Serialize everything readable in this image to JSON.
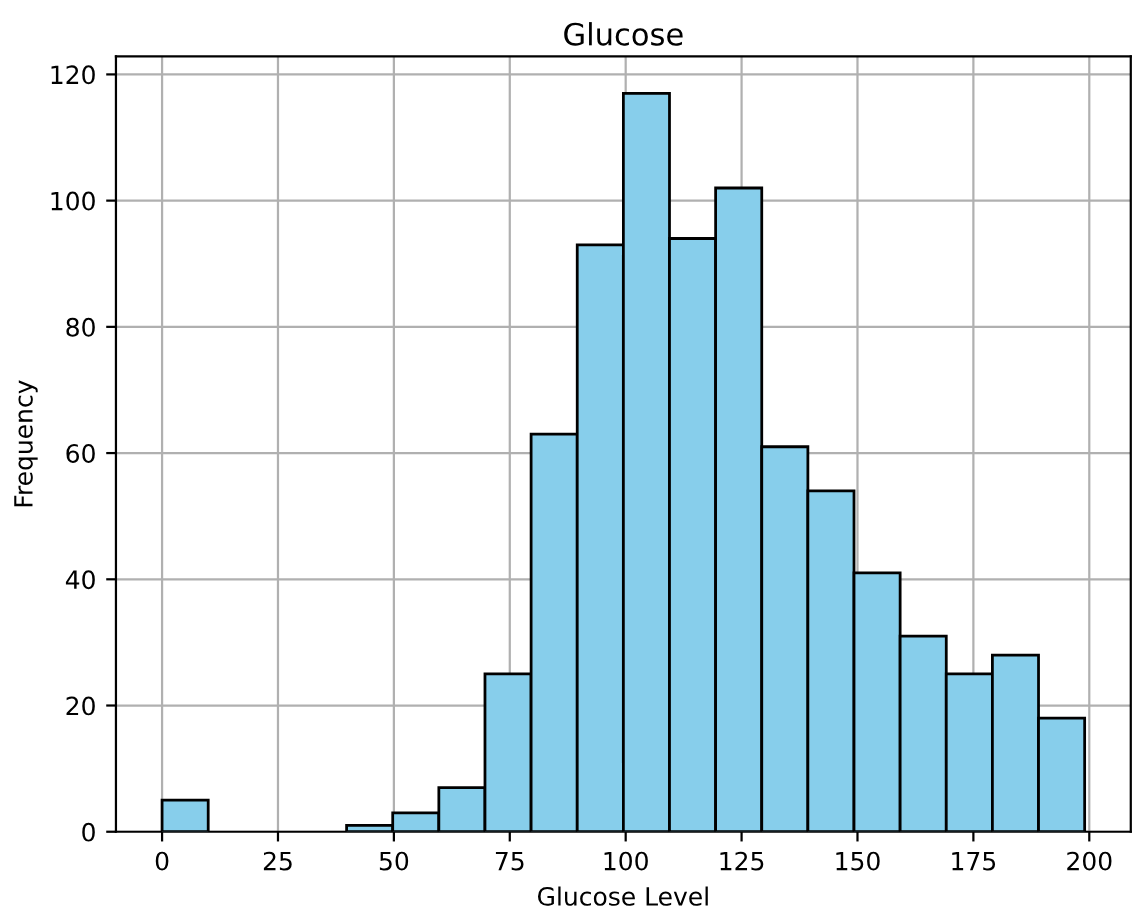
{
  "chart_data": {
    "type": "histogram",
    "title": "Glucose",
    "xlabel": "Glucose Level",
    "ylabel": "Frequency",
    "bins": [
      0,
      9.95,
      19.9,
      29.85,
      39.8,
      49.75,
      59.7,
      69.65,
      79.6,
      89.55,
      99.5,
      109.45,
      119.4,
      129.35,
      139.3,
      149.25,
      159.2,
      169.15,
      179.1,
      189.05,
      199
    ],
    "values": [
      5,
      0,
      0,
      0,
      1,
      3,
      7,
      25,
      63,
      93,
      117,
      94,
      102,
      61,
      54,
      41,
      31,
      25,
      28,
      18
    ],
    "color": "#87ceeb",
    "xlim": [
      -9.95,
      208.95
    ],
    "ylim": [
      0,
      122.85
    ],
    "xticks": [
      0,
      25,
      50,
      75,
      100,
      125,
      150,
      175,
      200
    ],
    "yticks": [
      0,
      20,
      40,
      60,
      80,
      100,
      120
    ],
    "grid": true
  }
}
